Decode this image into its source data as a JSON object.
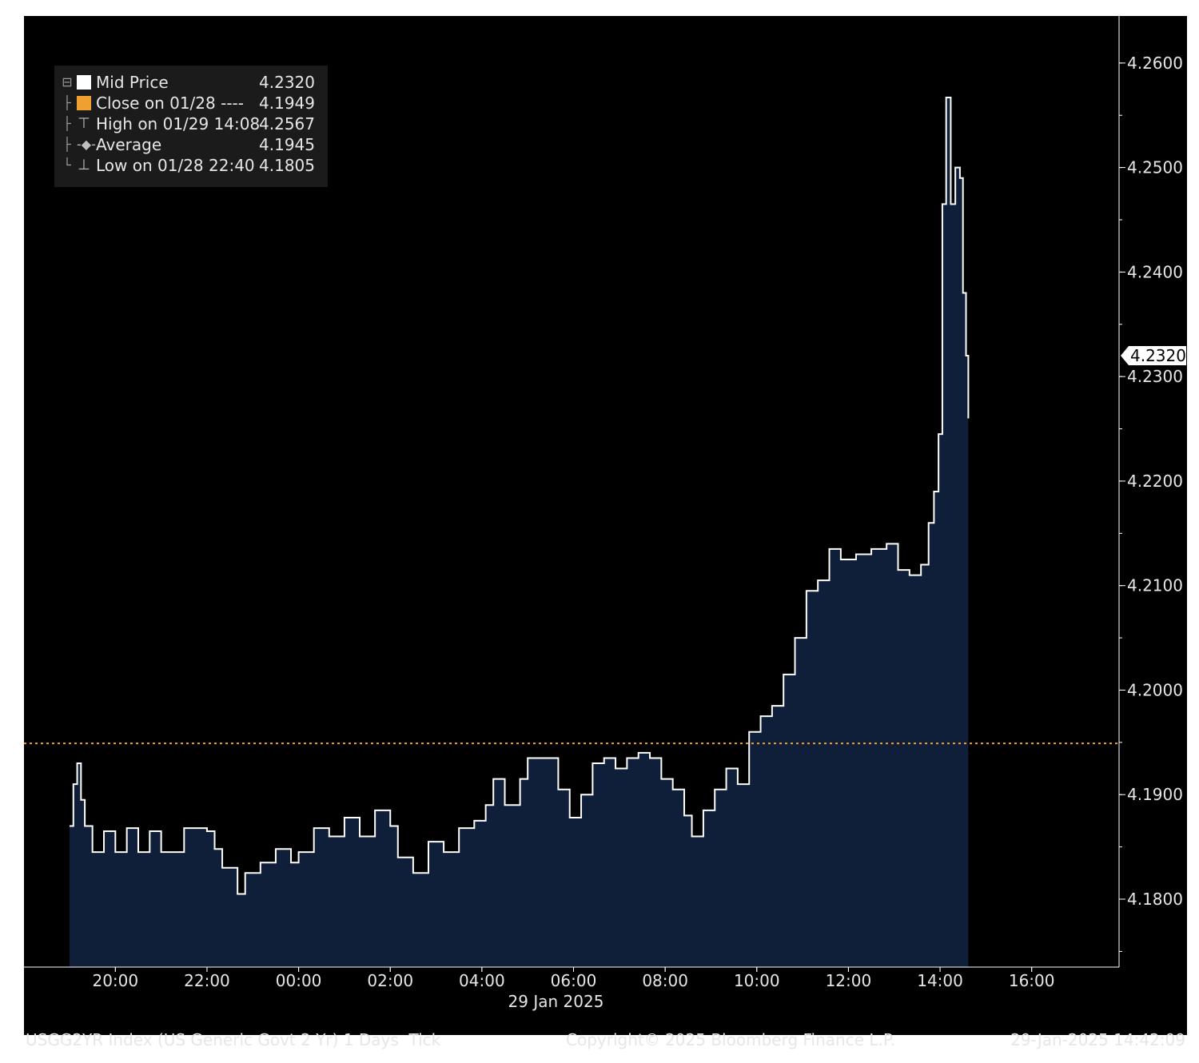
{
  "legend": {
    "items": [
      {
        "label": "Mid Price",
        "value": "4.2320",
        "swatch": "#ffffff",
        "icon": "square-swatch-icon"
      },
      {
        "label": "Close on 01/28 ----",
        "value": "4.1949",
        "swatch": "#f0a030",
        "icon": "square-swatch-icon"
      },
      {
        "label": "High on 01/29 14:08",
        "value": "4.2567",
        "swatch": "",
        "icon": "high-marker-icon"
      },
      {
        "label": "Average",
        "value": "4.1945",
        "swatch": "",
        "icon": "average-marker-icon"
      },
      {
        "label": "Low on 01/28 22:40",
        "value": "4.1805",
        "swatch": "",
        "icon": "low-marker-icon"
      }
    ]
  },
  "last_price_badge": "4.2320",
  "date_label": "29 Jan 2025",
  "footer": {
    "left": "USGG2YR Index (US Generic Govt 2 Yr) 1 Days  Tick",
    "center": "Copyright© 2025 Bloomberg Finance L.P.",
    "right": "29-Jan-2025 14:42:09"
  },
  "colors": {
    "background": "#000000",
    "fill": "#0f1f3a",
    "line": "#ffffff",
    "close_line": "#f0a030"
  },
  "chart_data": {
    "type": "area",
    "title": "",
    "xlabel": "",
    "ylabel": "",
    "x_ticks": [
      "20:00",
      "22:00",
      "00:00",
      "02:00",
      "04:00",
      "06:00",
      "08:00",
      "10:00",
      "12:00",
      "14:00",
      "16:00"
    ],
    "y_ticks": [
      "4.1800",
      "4.1900",
      "4.2000",
      "4.2100",
      "4.2200",
      "4.2300",
      "4.2400",
      "4.2500",
      "4.2600"
    ],
    "ylim": [
      4.1735,
      4.2645
    ],
    "close_reference": 4.1949,
    "series": [
      {
        "name": "Mid Price",
        "points": [
          [
            "19:00",
            4.187
          ],
          [
            "19:05",
            4.191
          ],
          [
            "19:10",
            4.193
          ],
          [
            "19:15",
            4.1895
          ],
          [
            "19:20",
            4.187
          ],
          [
            "19:30",
            4.1845
          ],
          [
            "19:45",
            4.1865
          ],
          [
            "20:00",
            4.1845
          ],
          [
            "20:15",
            4.1868
          ],
          [
            "20:30",
            4.1845
          ],
          [
            "20:45",
            4.1865
          ],
          [
            "21:00",
            4.1845
          ],
          [
            "21:30",
            4.1868
          ],
          [
            "22:00",
            4.1865
          ],
          [
            "22:10",
            4.1848
          ],
          [
            "22:20",
            4.183
          ],
          [
            "22:40",
            4.1805
          ],
          [
            "22:50",
            4.1825
          ],
          [
            "23:10",
            4.1835
          ],
          [
            "23:30",
            4.1848
          ],
          [
            "23:50",
            4.1835
          ],
          [
            "00:00",
            4.1845
          ],
          [
            "00:20",
            4.1868
          ],
          [
            "00:40",
            4.186
          ],
          [
            "01:00",
            4.1878
          ],
          [
            "01:20",
            4.186
          ],
          [
            "01:40",
            4.1885
          ],
          [
            "02:00",
            4.187
          ],
          [
            "02:10",
            4.184
          ],
          [
            "02:30",
            4.1825
          ],
          [
            "02:50",
            4.1855
          ],
          [
            "03:10",
            4.1845
          ],
          [
            "03:30",
            4.1868
          ],
          [
            "03:50",
            4.1875
          ],
          [
            "04:05",
            4.189
          ],
          [
            "04:15",
            4.1915
          ],
          [
            "04:30",
            4.189
          ],
          [
            "04:50",
            4.1915
          ],
          [
            "05:00",
            4.1935
          ],
          [
            "05:20",
            4.1935
          ],
          [
            "05:40",
            4.1905
          ],
          [
            "05:55",
            4.1878
          ],
          [
            "06:10",
            4.19
          ],
          [
            "06:25",
            4.193
          ],
          [
            "06:40",
            4.1935
          ],
          [
            "06:55",
            4.1925
          ],
          [
            "07:10",
            4.1935
          ],
          [
            "07:25",
            4.194
          ],
          [
            "07:40",
            4.1935
          ],
          [
            "07:55",
            4.1915
          ],
          [
            "08:10",
            4.1905
          ],
          [
            "08:25",
            4.188
          ],
          [
            "08:35",
            4.186
          ],
          [
            "08:50",
            4.1885
          ],
          [
            "09:05",
            4.1905
          ],
          [
            "09:20",
            4.1925
          ],
          [
            "09:35",
            4.191
          ],
          [
            "09:50",
            4.196
          ],
          [
            "10:05",
            4.1975
          ],
          [
            "10:20",
            4.1985
          ],
          [
            "10:35",
            4.2015
          ],
          [
            "10:50",
            4.205
          ],
          [
            "11:05",
            4.2095
          ],
          [
            "11:20",
            4.2105
          ],
          [
            "11:35",
            4.2135
          ],
          [
            "11:50",
            4.2125
          ],
          [
            "12:10",
            4.213
          ],
          [
            "12:30",
            4.2135
          ],
          [
            "12:50",
            4.214
          ],
          [
            "13:05",
            4.2115
          ],
          [
            "13:20",
            4.211
          ],
          [
            "13:35",
            4.212
          ],
          [
            "13:45",
            4.216
          ],
          [
            "13:52",
            4.219
          ],
          [
            "13:58",
            4.2245
          ],
          [
            "14:03",
            4.2465
          ],
          [
            "14:08",
            4.2567
          ],
          [
            "14:14",
            4.2465
          ],
          [
            "14:20",
            4.25
          ],
          [
            "14:26",
            4.249
          ],
          [
            "14:30",
            4.238
          ],
          [
            "14:34",
            4.232
          ],
          [
            "14:37",
            4.226
          ]
        ]
      }
    ]
  }
}
